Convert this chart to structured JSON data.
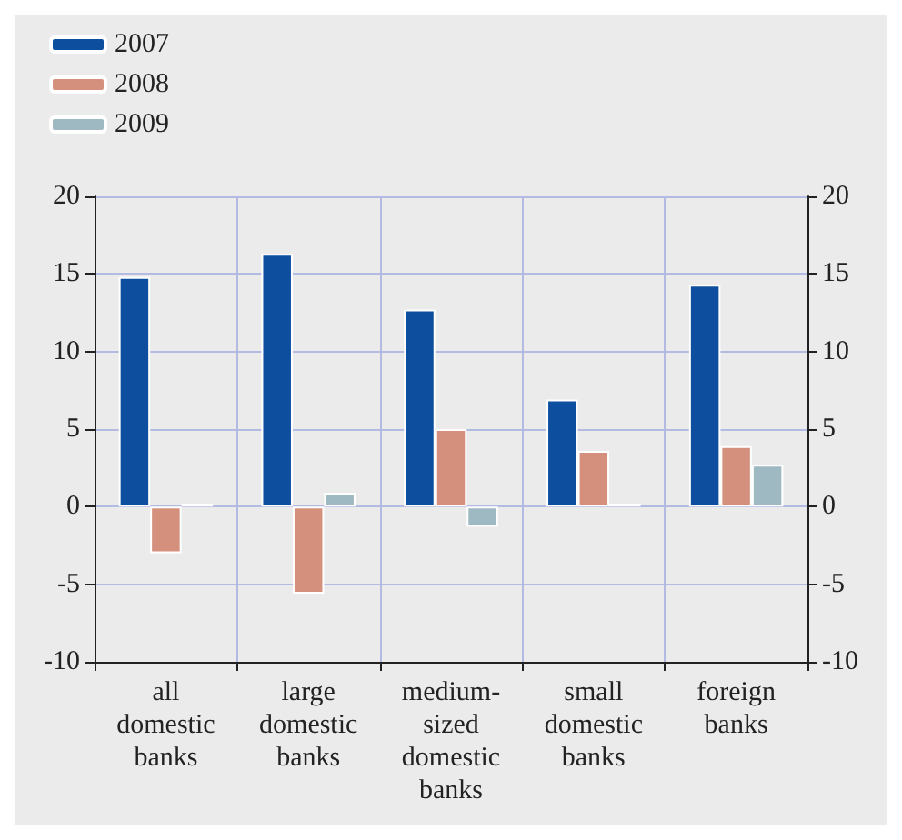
{
  "chart_data": {
    "type": "bar",
    "categories": [
      "all\ndomestic\nbanks",
      "large\ndomestic\nbanks",
      "medium-\nsized\ndomestic\nbanks",
      "small\ndomestic\nbanks",
      "foreign\nbanks"
    ],
    "series": [
      {
        "name": "2007",
        "color": "#0d4f9e",
        "values": [
          14.8,
          16.3,
          12.7,
          6.9,
          14.3
        ]
      },
      {
        "name": "2008",
        "color": "#d4907c",
        "values": [
          -3.0,
          -5.6,
          5.0,
          3.6,
          3.9
        ]
      },
      {
        "name": "2009",
        "color": "#9fb9c2",
        "values": [
          0.2,
          0.9,
          -1.3,
          0.2,
          2.7
        ]
      }
    ],
    "ylim": [
      -10,
      20
    ],
    "yticks": [
      -10,
      -5,
      0,
      5,
      10,
      15,
      20
    ],
    "y2lim": [
      -10,
      20
    ],
    "y2ticks": [
      -10,
      -5,
      0,
      5,
      10,
      15,
      20
    ],
    "grid": true,
    "legend": "top left"
  }
}
